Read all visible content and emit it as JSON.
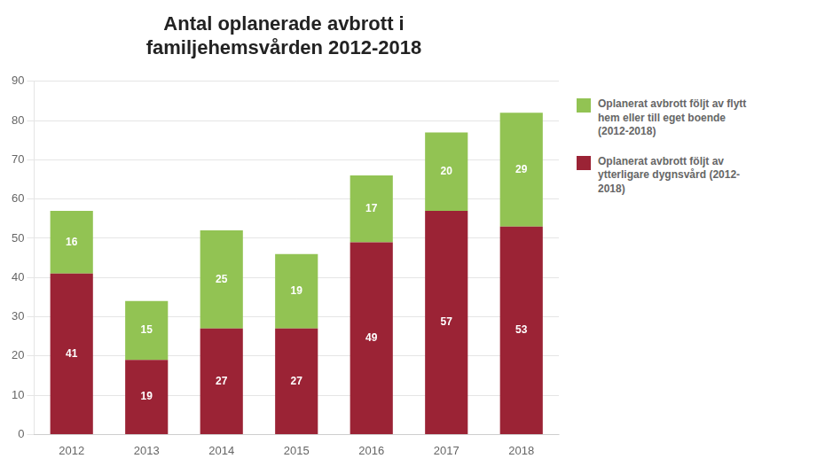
{
  "chart_data": {
    "type": "bar",
    "title": "Antal oplanerade avbrott i\nfamiljehemsvården 2012-2018",
    "categories": [
      "2012",
      "2013",
      "2014",
      "2015",
      "2016",
      "2017",
      "2018"
    ],
    "series": [
      {
        "name": "Oplanerat avbrott följt av\nytterligare dygnsvård (2012-\n2018)",
        "color": "#9B2335",
        "values": [
          41,
          19,
          27,
          27,
          49,
          57,
          53
        ]
      },
      {
        "name": "Oplanerat avbrott följt av flytt\nhem eller till eget boende\n(2012-2018)",
        "color": "#92C353",
        "values": [
          16,
          15,
          25,
          19,
          17,
          20,
          29
        ]
      }
    ],
    "stacked": true,
    "data_labels": true,
    "ylim": [
      0,
      90
    ],
    "yticks": [
      0,
      10,
      20,
      30,
      40,
      50,
      60,
      70,
      80,
      90
    ],
    "grid": true,
    "legend": "right"
  }
}
